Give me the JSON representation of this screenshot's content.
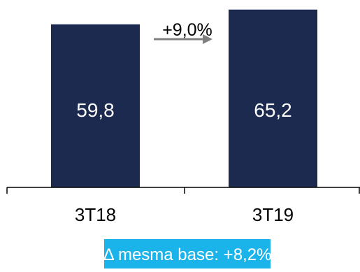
{
  "chart_data": {
    "type": "bar",
    "categories": [
      "3T18",
      "3T19"
    ],
    "values": [
      59.8,
      65.2
    ],
    "value_labels": [
      "59,8",
      "65,2"
    ],
    "title": "",
    "xlabel": "",
    "ylabel": "",
    "annotations": {
      "growth": "+9,0%",
      "note": "Δ mesma base: +8,2%"
    }
  },
  "colors": {
    "bar": "#1b2a4e",
    "bar_label": "#ffffff",
    "arrow": "#808080",
    "axis": "#000000",
    "text": "#000000",
    "note_bg": "#1bb4ea",
    "note_text": "#ffffff"
  }
}
